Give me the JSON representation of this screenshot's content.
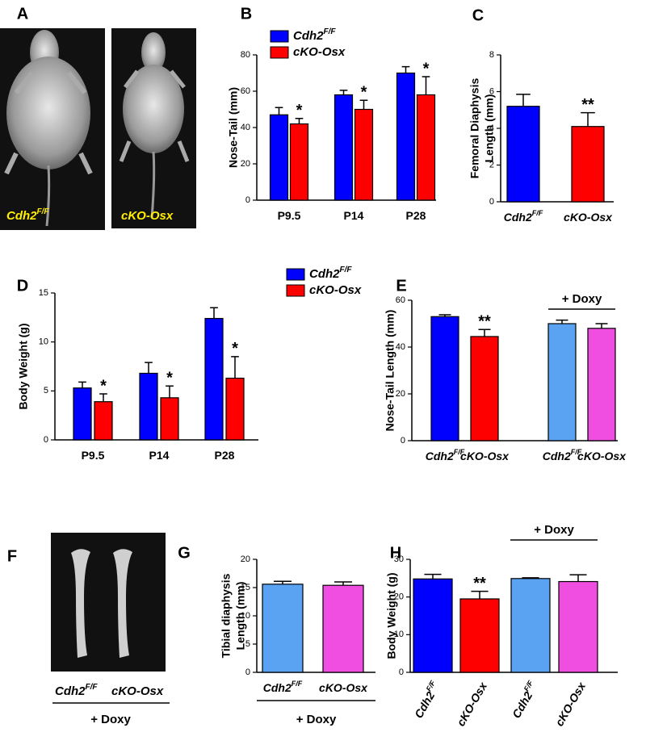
{
  "images": [
    {
      "panel": "A",
      "captions": [
        {
          "text": "Cdh2",
          "sup": "F/F"
        },
        {
          "text": "cKO-Osx"
        }
      ]
    },
    {
      "panel": "F",
      "captions": [
        {
          "text": "Cdh2",
          "sup": "F/F"
        },
        {
          "text": "cKO-Osx"
        }
      ],
      "group_label": "+ Doxy"
    }
  ],
  "chart_data": [
    {
      "type": "bar",
      "panel": "B",
      "y_label": [
        "Nose-Tail (mm)"
      ],
      "categories": [
        "P9.5",
        "P14",
        "P28"
      ],
      "series": [
        {
          "name": "Cdh2",
          "name_sup": "F/F",
          "color": "#0000ff",
          "values": [
            47,
            58,
            70
          ],
          "errors": [
            4,
            2.5,
            3.5
          ]
        },
        {
          "name": "cKO-Osx",
          "color": "#ff0000",
          "values": [
            42,
            50,
            58
          ],
          "errors": [
            3,
            5,
            10
          ],
          "labels": [
            "*",
            "*",
            "*"
          ]
        }
      ],
      "ylim": [
        0,
        80
      ],
      "yticks": [
        0,
        20,
        40,
        60,
        80
      ]
    },
    {
      "type": "bar",
      "panel": "C",
      "y_label": [
        "Femoral Diaphysis",
        "Length (mm)"
      ],
      "categories": [
        "Cdh2",
        "cKO-Osx"
      ],
      "category_sups": [
        "F/F",
        null
      ],
      "values": [
        5.2,
        4.1
      ],
      "errors": [
        0.65,
        0.75
      ],
      "colors": [
        "#0000ff",
        "#ff0000"
      ],
      "labels": [
        null,
        "**"
      ],
      "ylim": [
        0,
        8
      ],
      "yticks": [
        0,
        2,
        4,
        6,
        8
      ]
    },
    {
      "type": "bar",
      "panel": "D",
      "y_label": [
        "Body  Weight (g)"
      ],
      "categories": [
        "P9.5",
        "P14",
        "P28"
      ],
      "series": [
        {
          "name": "Cdh2",
          "name_sup": "F/F",
          "color": "#0000ff",
          "values": [
            5.3,
            6.8,
            12.4
          ],
          "errors": [
            0.6,
            1.1,
            1.1
          ]
        },
        {
          "name": "cKO-Osx",
          "color": "#ff0000",
          "values": [
            3.9,
            4.3,
            6.3
          ],
          "errors": [
            0.8,
            1.2,
            2.2
          ],
          "labels": [
            "*",
            "*",
            "*"
          ]
        }
      ],
      "ylim": [
        0,
        15
      ],
      "yticks": [
        0,
        5,
        10,
        15
      ]
    },
    {
      "type": "bar",
      "panel": "E",
      "y_label": [
        "Nose-Tail Length (mm)"
      ],
      "categories": [
        "Cdh2",
        "cKO-Osx",
        "Cdh2",
        "cKO-Osx"
      ],
      "category_sups": [
        "F/F",
        null,
        "F/F",
        null
      ],
      "values": [
        53,
        44.5,
        50,
        48
      ],
      "errors": [
        0.8,
        3,
        1.5,
        2
      ],
      "colors": [
        "#0000ff",
        "#ff0000",
        "#5aa2f2",
        "#f04ee0"
      ],
      "labels": [
        null,
        "**",
        null,
        null
      ],
      "group_label": "+ Doxy",
      "ylim": [
        0,
        60
      ],
      "yticks": [
        0,
        20,
        40,
        60
      ]
    },
    {
      "type": "bar",
      "panel": "G",
      "y_label": [
        "Tibial diaphysis",
        "Length (mm)"
      ],
      "categories": [
        "Cdh2",
        "cKO-Osx"
      ],
      "category_sups": [
        "F/F",
        null
      ],
      "values": [
        15.6,
        15.4
      ],
      "errors": [
        0.5,
        0.6
      ],
      "colors": [
        "#5aa2f2",
        "#f04ee0"
      ],
      "group_label": "+ Doxy",
      "ylim": [
        0,
        20
      ],
      "yticks": [
        0,
        5,
        10,
        15,
        20
      ]
    },
    {
      "type": "bar",
      "panel": "H",
      "y_label": [
        "Body Weight (g)"
      ],
      "categories": [
        "Cdh2",
        "cKO-Osx",
        "Cdh2",
        "cKO-Osx"
      ],
      "category_sups": [
        "F/F",
        null,
        "F/F",
        null
      ],
      "values": [
        24.8,
        19.5,
        24.9,
        24.1
      ],
      "errors": [
        1.2,
        2,
        0.2,
        1.8
      ],
      "colors": [
        "#0000ff",
        "#ff0000",
        "#5aa2f2",
        "#f04ee0"
      ],
      "labels": [
        null,
        "**",
        null,
        null
      ],
      "group_label": "+ Doxy",
      "ylim": [
        0,
        30
      ],
      "yticks": [
        0,
        10,
        20,
        30
      ]
    }
  ]
}
